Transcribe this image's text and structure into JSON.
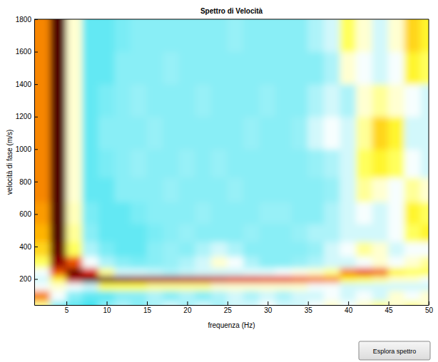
{
  "chart_data": {
    "type": "heatmap",
    "title": "Spettro di Velocità",
    "x_label": "frequenza (Hz)",
    "y_label": "velocità di fase (m/s)",
    "x": [
      2,
      4,
      6,
      8,
      10,
      12,
      14,
      16,
      18,
      20,
      22,
      24,
      26,
      28,
      30,
      32,
      34,
      36,
      38,
      40,
      42,
      44,
      46,
      48,
      50
    ],
    "y": [
      30,
      100,
      160,
      200,
      240,
      300,
      380,
      480,
      600,
      750,
      900,
      1100,
      1300,
      1500,
      1700
    ],
    "z": [
      [
        0.45,
        0.2,
        0.15,
        0.1,
        0.2,
        0.25,
        0.2,
        0.25,
        0.3,
        0.25,
        0.3,
        0.25,
        0.3,
        0.3,
        0.35,
        0.3,
        0.3,
        0.35,
        0.4,
        0.35,
        0.4,
        0.45,
        0.4,
        0.45,
        0.4
      ],
      [
        0.7,
        0.35,
        0.2,
        0.15,
        0.15,
        0.2,
        0.2,
        0.25,
        0.2,
        0.25,
        0.2,
        0.25,
        0.3,
        0.25,
        0.3,
        0.25,
        0.3,
        0.3,
        0.35,
        0.3,
        0.35,
        0.3,
        0.4,
        0.35,
        0.4
      ],
      [
        0.35,
        0.4,
        0.35,
        0.3,
        0.5,
        0.5,
        0.5,
        0.45,
        0.45,
        0.45,
        0.45,
        0.4,
        0.4,
        0.4,
        0.4,
        0.4,
        0.4,
        0.35,
        0.35,
        0.3,
        0.3,
        0.3,
        0.3,
        0.3,
        0.3
      ],
      [
        0.3,
        0.55,
        0.85,
        0.97,
        0.95,
        0.92,
        0.9,
        0.88,
        0.87,
        0.86,
        0.85,
        0.83,
        0.8,
        0.8,
        0.78,
        0.78,
        0.75,
        0.72,
        0.7,
        0.55,
        0.5,
        0.45,
        0.4,
        0.4,
        0.35
      ],
      [
        0.35,
        0.75,
        0.95,
        0.8,
        0.45,
        0.3,
        0.3,
        0.28,
        0.25,
        0.28,
        0.3,
        0.3,
        0.3,
        0.32,
        0.32,
        0.35,
        0.38,
        0.4,
        0.45,
        0.7,
        0.75,
        0.72,
        0.55,
        0.5,
        0.5
      ],
      [
        0.5,
        0.9,
        0.75,
        0.35,
        0.25,
        0.2,
        0.18,
        0.2,
        0.22,
        0.25,
        0.3,
        0.4,
        0.35,
        0.25,
        0.2,
        0.2,
        0.22,
        0.25,
        0.3,
        0.3,
        0.35,
        0.4,
        0.35,
        0.4,
        0.45
      ],
      [
        0.6,
        0.95,
        0.5,
        0.25,
        0.18,
        0.15,
        0.15,
        0.2,
        0.22,
        0.2,
        0.25,
        0.3,
        0.25,
        0.2,
        0.2,
        0.2,
        0.2,
        0.22,
        0.3,
        0.35,
        0.45,
        0.4,
        0.3,
        0.35,
        0.35
      ],
      [
        0.65,
        0.97,
        0.45,
        0.2,
        0.15,
        0.15,
        0.15,
        0.18,
        0.2,
        0.22,
        0.2,
        0.2,
        0.2,
        0.22,
        0.2,
        0.2,
        0.22,
        0.25,
        0.25,
        0.3,
        0.3,
        0.3,
        0.35,
        0.5,
        0.55
      ],
      [
        0.68,
        0.97,
        0.42,
        0.18,
        0.15,
        0.15,
        0.18,
        0.2,
        0.2,
        0.2,
        0.22,
        0.2,
        0.2,
        0.2,
        0.22,
        0.22,
        0.2,
        0.2,
        0.25,
        0.3,
        0.35,
        0.3,
        0.35,
        0.55,
        0.5
      ],
      [
        0.7,
        0.97,
        0.4,
        0.15,
        0.15,
        0.2,
        0.2,
        0.2,
        0.22,
        0.2,
        0.2,
        0.2,
        0.22,
        0.2,
        0.2,
        0.2,
        0.2,
        0.2,
        0.22,
        0.3,
        0.45,
        0.4,
        0.35,
        0.45,
        0.4
      ],
      [
        0.7,
        0.97,
        0.4,
        0.15,
        0.18,
        0.2,
        0.22,
        0.2,
        0.2,
        0.22,
        0.2,
        0.22,
        0.2,
        0.2,
        0.2,
        0.2,
        0.2,
        0.22,
        0.25,
        0.3,
        0.5,
        0.55,
        0.5,
        0.35,
        0.3
      ],
      [
        0.7,
        0.97,
        0.4,
        0.15,
        0.2,
        0.2,
        0.2,
        0.22,
        0.2,
        0.2,
        0.2,
        0.2,
        0.2,
        0.22,
        0.2,
        0.2,
        0.22,
        0.3,
        0.35,
        0.3,
        0.45,
        0.6,
        0.55,
        0.3,
        0.3
      ],
      [
        0.7,
        0.97,
        0.4,
        0.15,
        0.18,
        0.2,
        0.22,
        0.2,
        0.2,
        0.2,
        0.22,
        0.2,
        0.2,
        0.2,
        0.22,
        0.2,
        0.2,
        0.25,
        0.3,
        0.25,
        0.4,
        0.45,
        0.4,
        0.35,
        0.3
      ],
      [
        0.7,
        0.97,
        0.4,
        0.15,
        0.15,
        0.2,
        0.2,
        0.2,
        0.22,
        0.2,
        0.2,
        0.2,
        0.2,
        0.2,
        0.2,
        0.2,
        0.2,
        0.2,
        0.25,
        0.4,
        0.35,
        0.3,
        0.35,
        0.55,
        0.5
      ],
      [
        0.7,
        0.97,
        0.4,
        0.15,
        0.15,
        0.18,
        0.2,
        0.2,
        0.2,
        0.2,
        0.2,
        0.2,
        0.22,
        0.2,
        0.2,
        0.2,
        0.2,
        0.25,
        0.3,
        0.5,
        0.4,
        0.3,
        0.4,
        0.6,
        0.55
      ]
    ],
    "xlim": [
      1,
      50
    ],
    "ylim": [
      40,
      1800
    ],
    "xticks": [
      5,
      10,
      15,
      20,
      25,
      30,
      35,
      40,
      45,
      50
    ],
    "yticks": [
      200,
      400,
      600,
      800,
      1000,
      1200,
      1400,
      1600,
      1800
    ]
  },
  "button": "Esplora spettro"
}
